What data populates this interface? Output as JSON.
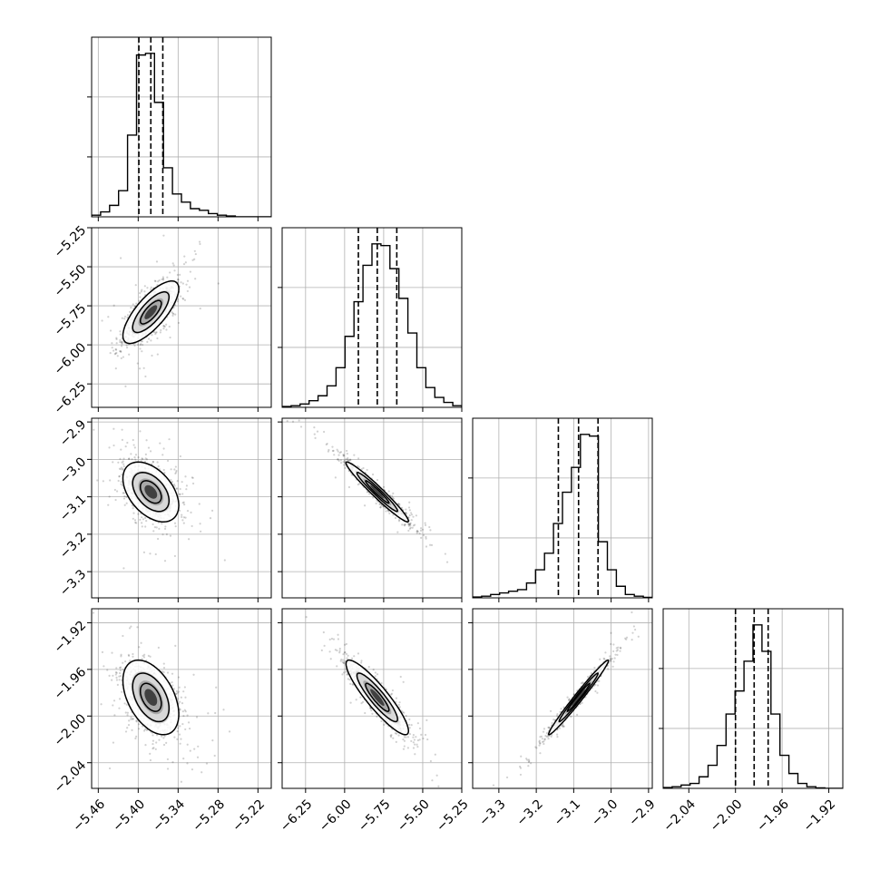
{
  "chart_data": {
    "type": "corner",
    "variables": [
      {
        "range": [
          -5.47,
          -5.2
        ],
        "ticks": [
          -5.46,
          -5.4,
          -5.34,
          -5.28,
          -5.22
        ],
        "tick_labels": [
          "−5.46",
          "−5.40",
          "−5.34",
          "−5.28",
          "−5.22"
        ],
        "quantiles": [
          -5.399,
          -5.381,
          -5.363
        ]
      },
      {
        "range": [
          -6.4,
          -5.25
        ],
        "ticks": [
          -6.25,
          -6.0,
          -5.75,
          -5.5,
          -5.25
        ],
        "tick_labels": [
          "−6.25",
          "−6.00",
          "−5.75",
          "−5.50",
          "−5.25"
        ],
        "quantiles": [
          -5.912,
          -5.791,
          -5.666
        ]
      },
      {
        "range": [
          -3.37,
          -2.89
        ],
        "ticks": [
          -3.3,
          -3.2,
          -3.1,
          -3.0,
          -2.9
        ],
        "tick_labels": [
          "−3.3",
          "−3.2",
          "−3.1",
          "−3.0",
          "−2.9"
        ],
        "quantiles": [
          -3.141,
          -3.087,
          -3.035
        ]
      },
      {
        "range": [
          -2.062,
          -1.908
        ],
        "ticks": [
          -2.04,
          -2.0,
          -1.96,
          -1.92
        ],
        "tick_labels": [
          "−2.04",
          "−2.00",
          "−1.96",
          "−1.92"
        ],
        "quantiles": [
          -2.0,
          -1.984,
          -1.972
        ]
      }
    ],
    "histograms": [
      [
        1,
        3,
        7,
        16,
        50,
        99,
        100,
        70,
        30,
        14,
        9,
        5,
        4,
        2,
        1,
        0.5,
        0,
        0,
        0,
        0
      ],
      [
        0.5,
        1,
        2,
        4,
        7,
        13,
        24,
        43,
        64,
        86,
        99,
        98,
        84,
        66,
        45,
        24,
        12,
        6,
        3,
        1
      ],
      [
        0.5,
        1,
        2,
        3,
        4,
        5,
        9,
        17,
        27,
        45,
        64,
        79,
        99,
        98,
        34,
        17,
        7,
        2,
        1,
        0.3
      ],
      [
        0.5,
        1,
        2,
        3,
        7,
        14,
        26,
        45,
        59,
        77,
        99,
        83,
        45,
        20,
        9,
        3,
        1,
        0.3,
        0,
        0
      ]
    ],
    "means": [
      -5.381,
      -5.791,
      -3.087,
      -1.984
    ],
    "sigmas": [
      0.021,
      0.1,
      0.04,
      0.016
    ],
    "correlations": {
      "1_0": 0.75,
      "2_0": -0.45,
      "2_1": -0.97,
      "3_0": -0.45,
      "3_1": -0.9,
      "3_2": 0.985
    },
    "grid": true
  }
}
